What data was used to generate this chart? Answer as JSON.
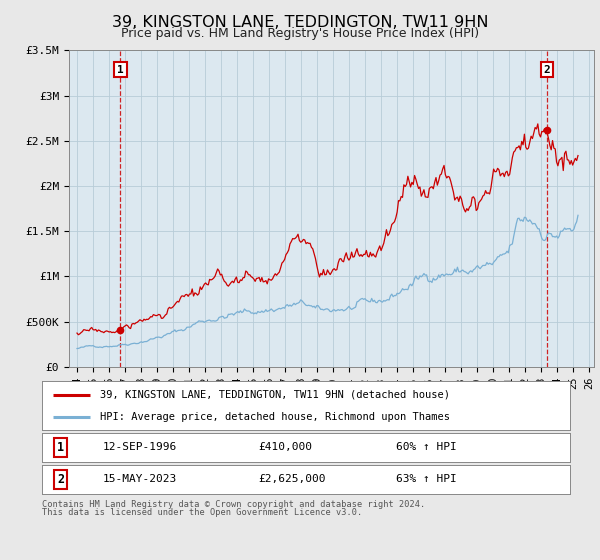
{
  "title": "39, KINGSTON LANE, TEDDINGTON, TW11 9HN",
  "subtitle": "Price paid vs. HM Land Registry's House Price Index (HPI)",
  "title_fontsize": 11.5,
  "subtitle_fontsize": 9,
  "background_color": "#e8e8e8",
  "plot_bg_color": "#dce8f0",
  "red_color": "#cc0000",
  "blue_color": "#7ab0d4",
  "xmin": 1993.5,
  "xmax": 2026.3,
  "ymin": 0,
  "ymax": 3500000,
  "yticks": [
    0,
    500000,
    1000000,
    1500000,
    2000000,
    2500000,
    3000000,
    3500000
  ],
  "ytick_labels": [
    "£0",
    "£500K",
    "£1M",
    "£1.5M",
    "£2M",
    "£2.5M",
    "£3M",
    "£3.5M"
  ],
  "xticks": [
    1994,
    1995,
    1996,
    1997,
    1998,
    1999,
    2000,
    2001,
    2002,
    2003,
    2004,
    2005,
    2006,
    2007,
    2008,
    2009,
    2010,
    2011,
    2012,
    2013,
    2014,
    2015,
    2016,
    2017,
    2018,
    2019,
    2020,
    2021,
    2022,
    2023,
    2024,
    2025,
    2026
  ],
  "sale1_x": 1996.71,
  "sale1_y": 410000,
  "sale2_x": 2023.37,
  "sale2_y": 2625000,
  "legend_line1": "39, KINGSTON LANE, TEDDINGTON, TW11 9HN (detached house)",
  "legend_line2": "HPI: Average price, detached house, Richmond upon Thames",
  "table_row1_num": "1",
  "table_row1_date": "12-SEP-1996",
  "table_row1_price": "£410,000",
  "table_row1_hpi": "60% ↑ HPI",
  "table_row2_num": "2",
  "table_row2_date": "15-MAY-2023",
  "table_row2_price": "£2,625,000",
  "table_row2_hpi": "63% ↑ HPI",
  "footer_text1": "Contains HM Land Registry data © Crown copyright and database right 2024.",
  "footer_text2": "This data is licensed under the Open Government Licence v3.0."
}
